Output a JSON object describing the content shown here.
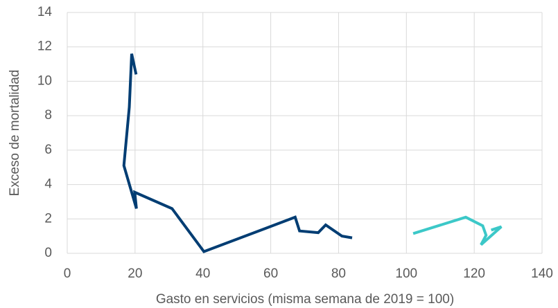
{
  "chart_data": {
    "type": "line",
    "x_label": "Gasto en servicios (misma semana de 2019 = 100)",
    "y_label": "Exceso de mortalidad",
    "series": [
      {
        "color": "#003d73",
        "x": [
          20.3,
          19,
          18.3,
          16.7,
          20.4,
          19.9,
          30.9,
          40.3,
          67.2,
          68.5,
          74,
          76.2,
          81,
          84
        ],
        "values": [
          10.4,
          11.6,
          8.5,
          5.1,
          2.6,
          3.55,
          2.6,
          0.1,
          2.1,
          1.3,
          1.2,
          1.65,
          1.0,
          0.9
        ]
      },
      {
        "color": "#3cc8c8",
        "x": [
          102,
          117.5,
          122.5,
          123.5,
          122,
          128,
          125
        ],
        "values": [
          1.15,
          2.1,
          1.6,
          1.05,
          0.5,
          1.55,
          1.35
        ]
      }
    ],
    "xlim": [
      0,
      140
    ],
    "xticks": [
      0,
      20,
      40,
      60,
      80,
      100,
      120,
      140
    ],
    "ylim": [
      0,
      14
    ],
    "yticks": [
      0,
      2,
      4,
      6,
      8,
      10,
      12,
      14
    ],
    "grid": true
  }
}
